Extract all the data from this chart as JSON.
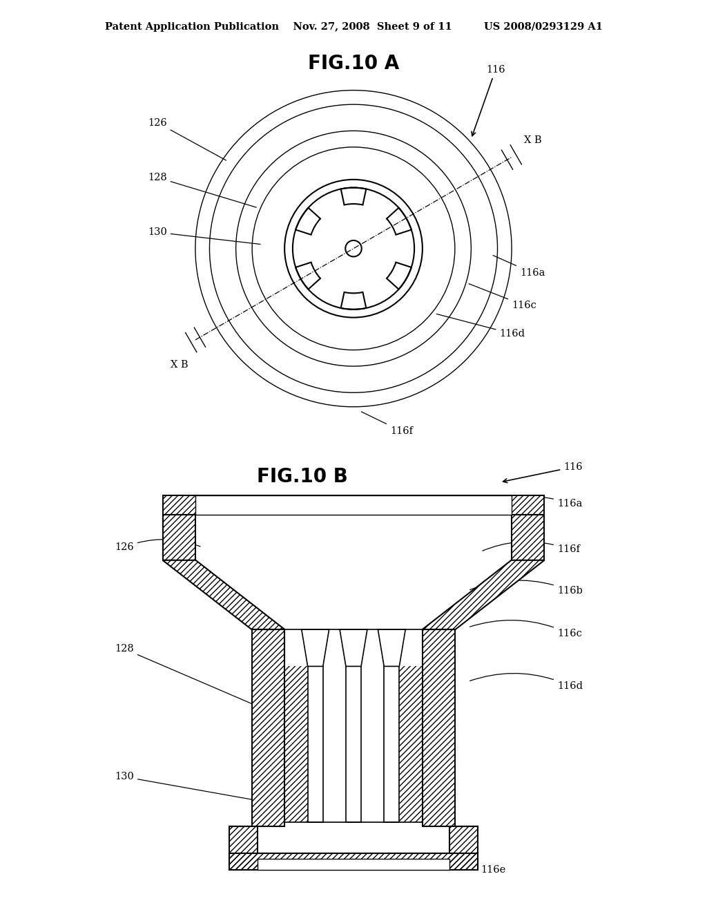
{
  "bg_color": "#ffffff",
  "line_color": "#000000",
  "header_text": "Patent Application Publication    Nov. 27, 2008  Sheet 9 of 11         US 2008/0293129 A1",
  "fig_title_A": "FIG.10 A",
  "fig_title_B": "FIG.10 B",
  "fig_title_fontsize": 20,
  "header_fontsize": 10.5,
  "label_fontsize": 10.5
}
